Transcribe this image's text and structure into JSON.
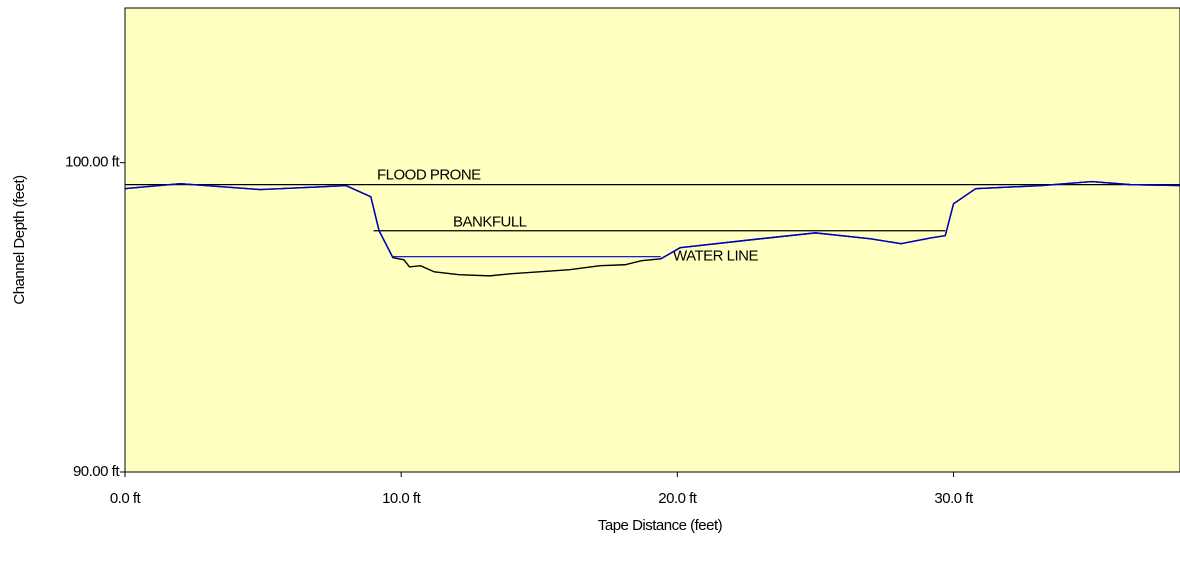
{
  "chart_data": {
    "type": "line",
    "x_label": "Tape Distance (feet)",
    "y_label": "Channel Depth (feet)",
    "x": [
      0,
      2.0,
      4.9,
      7.1,
      8.0,
      8.9,
      9.2,
      9.7,
      10.1,
      10.3,
      10.7,
      11.2,
      12.1,
      13.2,
      14.0,
      15.0,
      16.1,
      17.2,
      18.1,
      18.7,
      19.4,
      20.1,
      22.6,
      25.0,
      27.0,
      28.1,
      29.2,
      29.7,
      30.0,
      30.8,
      33.2,
      35.0,
      36.4,
      38.2
    ],
    "series": [
      {
        "color": "#000000",
        "values": [
          99.16,
          99.32,
          99.13,
          99.22,
          99.26,
          98.9,
          97.8,
          96.93,
          96.86,
          96.63,
          96.67,
          96.47,
          96.38,
          96.34,
          96.41,
          96.47,
          96.54,
          96.67,
          96.7,
          96.83,
          96.89,
          97.25,
          97.5,
          97.73,
          97.54,
          97.38,
          97.57,
          97.64,
          98.67,
          99.16,
          99.26,
          99.39,
          99.29,
          99.26
        ]
      },
      {
        "color": "#0000cc",
        "values": [
          99.16,
          99.32,
          99.13,
          99.22,
          99.26,
          98.9,
          97.8,
          96.93,
          null,
          null,
          null,
          null,
          null,
          null,
          null,
          null,
          null,
          null,
          null,
          null,
          96.89,
          97.25,
          97.5,
          97.73,
          97.54,
          97.38,
          97.57,
          97.64,
          98.67,
          99.16,
          99.26,
          99.39,
          99.29,
          99.26
        ]
      }
    ],
    "reference_lines": [
      {
        "label": "FLOOD PRONE",
        "y": 99.29,
        "x": [
          0,
          38.2
        ],
        "color": "#000000"
      },
      {
        "label": "BANKFULL",
        "y": 97.8,
        "x": [
          9.0,
          29.7
        ],
        "color": "#000000"
      },
      {
        "label": "WATER LINE",
        "y": 96.96,
        "x": [
          9.7,
          19.4
        ],
        "color": "#0000cc"
      }
    ],
    "xlim": [
      0,
      38.2
    ],
    "ylim": [
      90,
      105
    ],
    "xticks": [
      {
        "value": 0,
        "label": "0.0 ft"
      },
      {
        "value": 10,
        "label": "10.0 ft"
      },
      {
        "value": 20,
        "label": "20.0 ft"
      },
      {
        "value": 30,
        "label": "30.0 ft"
      }
    ],
    "yticks": [
      {
        "value": 90,
        "label": "90.00 ft"
      },
      {
        "value": 100,
        "label": "100.00 ft"
      }
    ],
    "background": "#ffffc0",
    "grid": false
  }
}
